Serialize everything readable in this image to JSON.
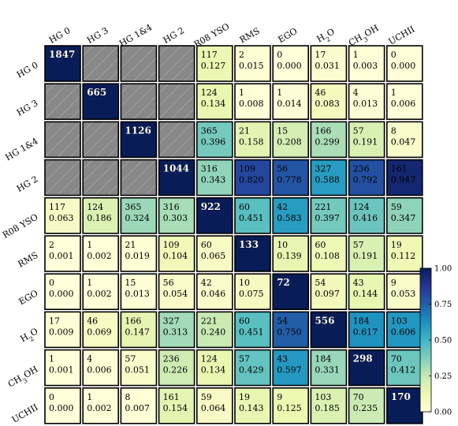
{
  "chart_data": {
    "type": "heatmap",
    "title": "",
    "labels": [
      "HG 0",
      "HG 3",
      "HG 1&4",
      "HG 2",
      "R08 YSO",
      "RMS",
      "EGO",
      "H2O",
      "CH3OH",
      "UCHII"
    ],
    "label_display": [
      {
        "main": "HG 0"
      },
      {
        "main": "HG 3"
      },
      {
        "main": "HG 1&4"
      },
      {
        "main": "HG 2"
      },
      {
        "main": "R08 YSO"
      },
      {
        "main": "RMS"
      },
      {
        "main": "EGO"
      },
      {
        "main": "H",
        "sub": "2",
        "post": "O"
      },
      {
        "main": "CH",
        "sub": "3",
        "post": "OH"
      },
      {
        "main": "UCHII"
      }
    ],
    "diagonal": [
      1847,
      665,
      1126,
      1044,
      922,
      133,
      72,
      556,
      298,
      170
    ],
    "cells": [
      [
        null,
        null,
        null,
        null,
        [
          117,
          "0.127"
        ],
        [
          2,
          "0.015"
        ],
        [
          0,
          "0.000"
        ],
        [
          17,
          "0.031"
        ],
        [
          1,
          "0.003"
        ],
        [
          0,
          "0.000"
        ]
      ],
      [
        null,
        null,
        null,
        null,
        [
          124,
          "0.134"
        ],
        [
          1,
          "0.008"
        ],
        [
          1,
          "0.014"
        ],
        [
          46,
          "0.083"
        ],
        [
          4,
          "0.013"
        ],
        [
          1,
          "0.006"
        ]
      ],
      [
        null,
        null,
        null,
        null,
        [
          365,
          "0.396"
        ],
        [
          21,
          "0.158"
        ],
        [
          15,
          "0.208"
        ],
        [
          166,
          "0.299"
        ],
        [
          57,
          "0.191"
        ],
        [
          8,
          "0.047"
        ]
      ],
      [
        null,
        null,
        null,
        null,
        [
          316,
          "0.343"
        ],
        [
          109,
          "0.820"
        ],
        [
          56,
          "0.778"
        ],
        [
          327,
          "0.588"
        ],
        [
          236,
          "0.792"
        ],
        [
          161,
          "0.947"
        ]
      ],
      [
        [
          117,
          "0.063"
        ],
        [
          124,
          "0.186"
        ],
        [
          365,
          "0.324"
        ],
        [
          316,
          "0.303"
        ],
        null,
        [
          60,
          "0.451"
        ],
        [
          42,
          "0.583"
        ],
        [
          221,
          "0.397"
        ],
        [
          124,
          "0.416"
        ],
        [
          59,
          "0.347"
        ]
      ],
      [
        [
          2,
          "0.001"
        ],
        [
          1,
          "0.002"
        ],
        [
          21,
          "0.019"
        ],
        [
          109,
          "0.104"
        ],
        [
          60,
          "0.065"
        ],
        null,
        [
          10,
          "0.139"
        ],
        [
          60,
          "0.108"
        ],
        [
          57,
          "0.191"
        ],
        [
          19,
          "0.112"
        ]
      ],
      [
        [
          0,
          "0.000"
        ],
        [
          1,
          "0.002"
        ],
        [
          15,
          "0.013"
        ],
        [
          56,
          "0.054"
        ],
        [
          42,
          "0.046"
        ],
        [
          10,
          "0.075"
        ],
        null,
        [
          54,
          "0.097"
        ],
        [
          43,
          "0.144"
        ],
        [
          9,
          "0.053"
        ]
      ],
      [
        [
          17,
          "0.009"
        ],
        [
          46,
          "0.069"
        ],
        [
          166,
          "0.147"
        ],
        [
          327,
          "0.313"
        ],
        [
          221,
          "0.240"
        ],
        [
          60,
          "0.451"
        ],
        [
          54,
          "0.750"
        ],
        null,
        [
          184,
          "0.617"
        ],
        [
          103,
          "0.606"
        ]
      ],
      [
        [
          1,
          "0.001"
        ],
        [
          4,
          "0.006"
        ],
        [
          57,
          "0.051"
        ],
        [
          236,
          "0.226"
        ],
        [
          124,
          "0.134"
        ],
        [
          57,
          "0.429"
        ],
        [
          43,
          "0.597"
        ],
        [
          184,
          "0.331"
        ],
        null,
        [
          70,
          "0.412"
        ]
      ],
      [
        [
          0,
          "0.000"
        ],
        [
          1,
          "0.002"
        ],
        [
          8,
          "0.007"
        ],
        [
          161,
          "0.154"
        ],
        [
          59,
          "0.064"
        ],
        [
          19,
          "0.143"
        ],
        [
          9,
          "0.125"
        ],
        [
          103,
          "0.185"
        ],
        [
          70,
          "0.235"
        ],
        null
      ]
    ],
    "colorbar": {
      "range": [
        0,
        1
      ],
      "ticks": [
        "0.00",
        "0.25",
        "0.50",
        "0.75",
        "1.00"
      ],
      "colormap": "YlGnBu"
    },
    "colors": {
      "masked_fill": "#888888",
      "diagonal_fill": "#081d58",
      "cell_border": "#000000"
    }
  }
}
